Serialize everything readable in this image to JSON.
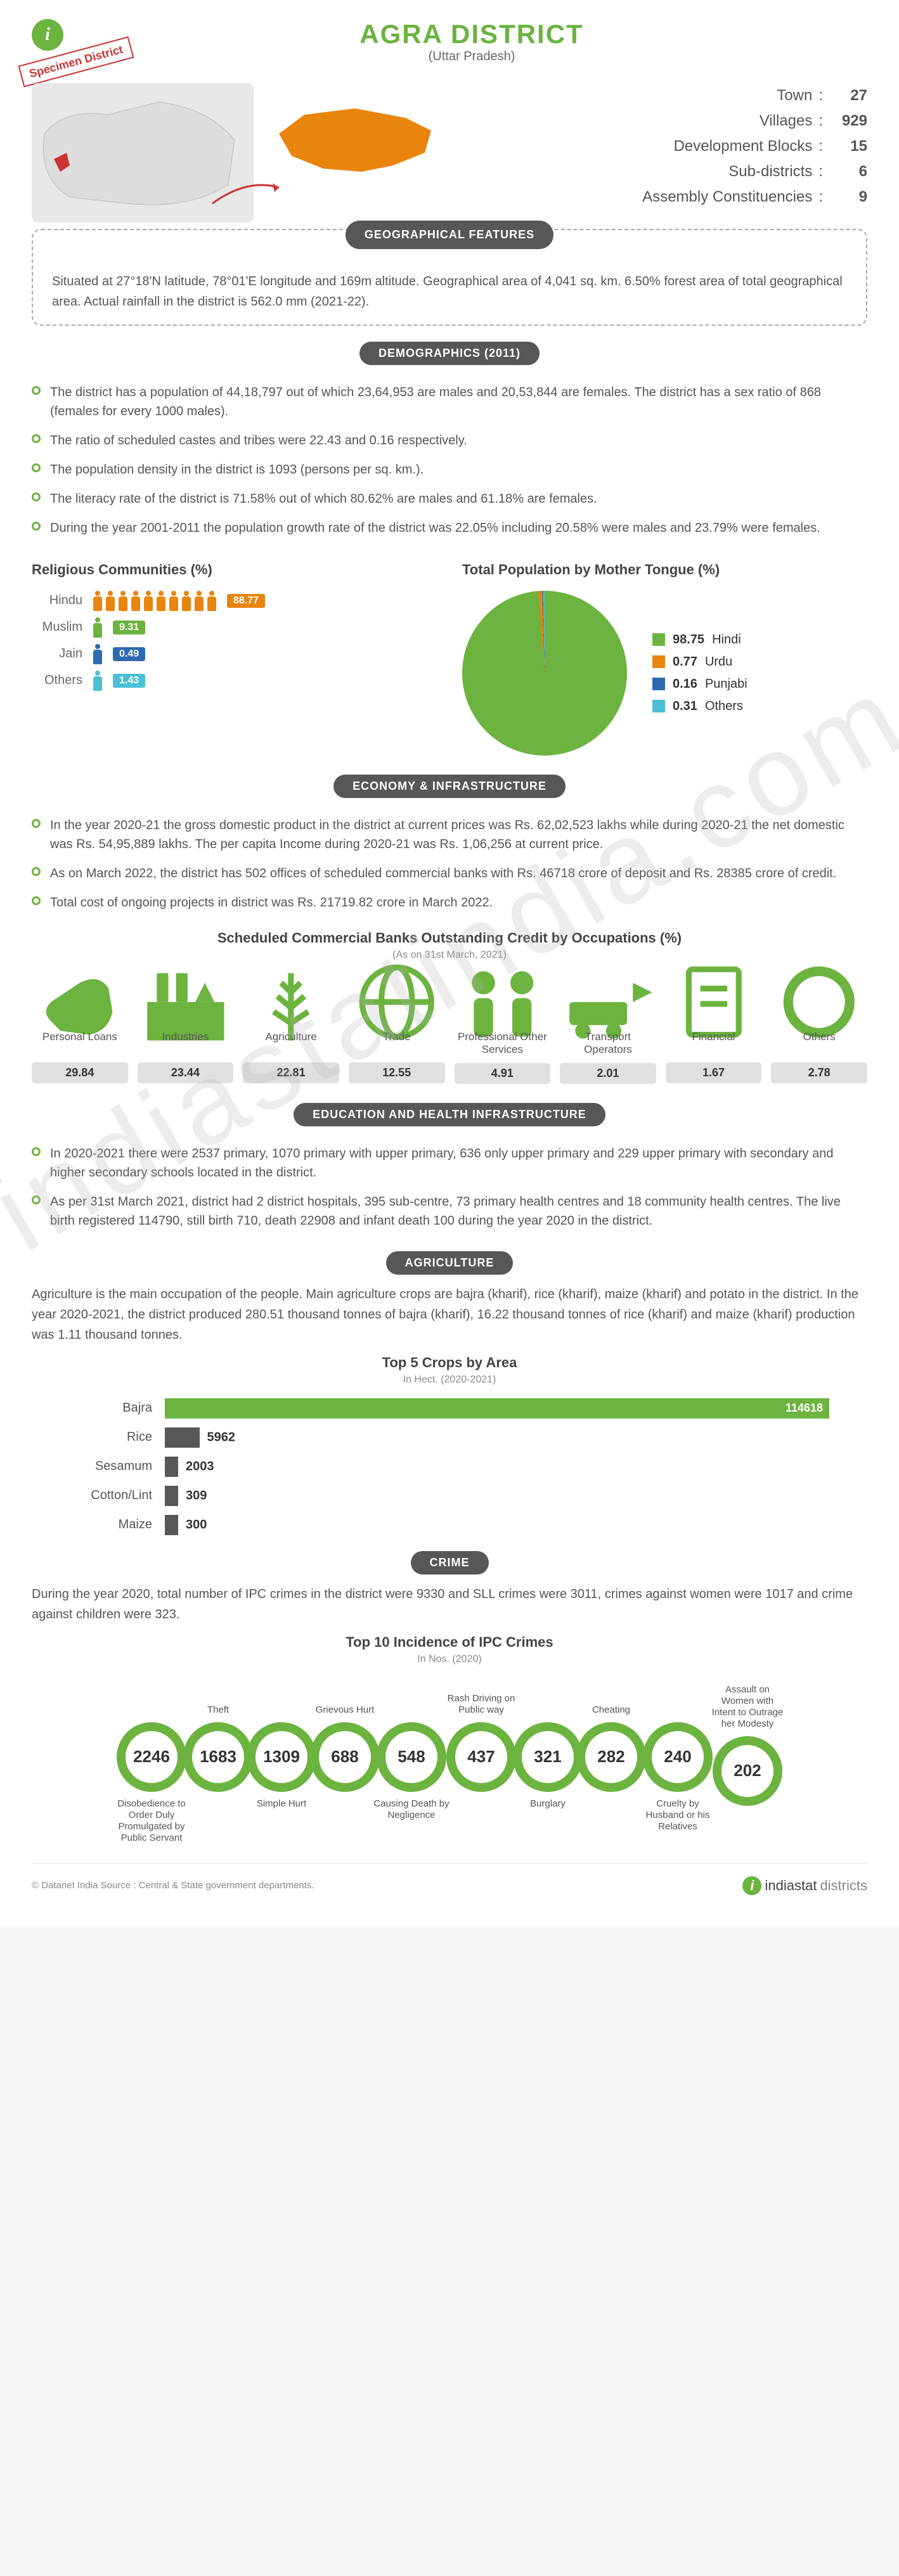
{
  "title": "AGRA DISTRICT",
  "subtitle": "(Uttar Pradesh)",
  "specimen_label": "Specimen District",
  "watermark": "indiastatindia.com",
  "colors": {
    "primary": "#6cb33f",
    "orange": "#e8850f",
    "blue": "#2d6bb0",
    "cyan": "#4bbfd4",
    "dark": "#565759",
    "bar_bg": "#e0e0e0"
  },
  "top_stats": [
    {
      "label": "Town",
      "value": "27"
    },
    {
      "label": "Villages",
      "value": "929"
    },
    {
      "label": "Development Blocks",
      "value": "15"
    },
    {
      "label": "Sub-districts",
      "value": "6"
    },
    {
      "label": "Assembly Constituencies",
      "value": "9"
    }
  ],
  "sections": {
    "geo": {
      "header": "GEOGRAPHICAL FEATURES",
      "text": "Situated at 27°18'N latitude, 78°01'E longitude and 169m altitude. Geographical area of 4,041 sq. km. 6.50% forest area of total geographical area. Actual rainfall in the district is 562.0 mm (2021-22)."
    },
    "demographics": {
      "header": "DEMOGRAPHICS (2011)",
      "bullets": [
        "The district has a population of 44,18,797 out of which 23,64,953 are males and 20,53,844 are females. The district has a sex ratio of 868 (females for every 1000 males).",
        "The ratio of scheduled castes and tribes were 22.43 and 0.16 respectively.",
        "The population density in the district is 1093 (persons per sq. km.).",
        "The literacy rate of the district is 71.58% out of which 80.62% are males and 61.18% are females.",
        "During the year 2001-2011 the population growth rate of the district was 22.05% including 20.58% were males and 23.79% were females."
      ]
    },
    "religion": {
      "title": "Religious Communities (%)",
      "items": [
        {
          "name": "Hindu",
          "pct": "88.77",
          "color": "#e8850f",
          "icons": 10
        },
        {
          "name": "Muslim",
          "pct": "9.31",
          "color": "#6cb33f",
          "icons": 1
        },
        {
          "name": "Jain",
          "pct": "0.49",
          "color": "#2d6bb0",
          "icons": 1
        },
        {
          "name": "Others",
          "pct": "1.43",
          "color": "#4bbfd4",
          "icons": 1
        }
      ]
    },
    "mother_tongue": {
      "title": "Total Population by Mother Tongue (%)",
      "items": [
        {
          "label": "Hindi",
          "value": "98.75",
          "color": "#6cb33f"
        },
        {
          "label": "Urdu",
          "value": "0.77",
          "color": "#e8850f"
        },
        {
          "label": "Punjabi",
          "value": "0.16",
          "color": "#2d6bb0"
        },
        {
          "label": "Others",
          "value": "0.31",
          "color": "#4bbfd4"
        }
      ]
    },
    "economy": {
      "header": "ECONOMY & INFRASTRUCTURE",
      "bullets": [
        "In the year 2020-21 the gross domestic product in the district at current prices was Rs. 62,02,523 lakhs while during 2020-21 the net domestic was Rs. 54,95,889 lakhs. The per capita Income during 2020-21 was Rs. 1,06,256 at current price.",
        "As on March 2022, the district has 502 offices of scheduled commercial banks with Rs. 46718 crore of deposit and Rs. 28385 crore of credit.",
        "Total cost of ongoing projects in district was Rs. 21719.82 crore in March 2022."
      ]
    },
    "credit": {
      "title": "Scheduled Commercial Banks Outstanding Credit by Occupations (%)",
      "subtitle": "(As on 31st March, 2021)",
      "items": [
        {
          "label": "Personal Loans",
          "value": "29.84",
          "icon": "hand"
        },
        {
          "label": "Industries",
          "value": "23.44",
          "icon": "factory"
        },
        {
          "label": "Agriculture",
          "value": "22.81",
          "icon": "wheat"
        },
        {
          "label": "Trade",
          "value": "12.55",
          "icon": "globe"
        },
        {
          "label": "Professional Other Services",
          "value": "4.91",
          "icon": "people"
        },
        {
          "label": "Transport Operators",
          "value": "2.01",
          "icon": "transport"
        },
        {
          "label": "Financial",
          "value": "1.67",
          "icon": "doc"
        },
        {
          "label": "Others",
          "value": "2.78",
          "icon": "circle"
        }
      ]
    },
    "education": {
      "header": "EDUCATION AND HEALTH INFRASTRUCTURE",
      "bullets": [
        "In 2020-2021 there were 2537 primary, 1070 primary with upper primary, 636 only upper primary and 229 upper primary with secondary and higher secondary schools located in the district.",
        "As per 31st March 2021, district had 2 district hospitals, 395 sub-centre, 73 primary health centres and 18 community health centres. The live birth registered 114790, still birth 710, death 22908 and infant death 100 during the year 2020 in the district."
      ]
    },
    "agriculture": {
      "header": "AGRICULTURE",
      "text": "Agriculture is the main occupation of the people. Main agriculture crops are bajra (kharif), rice (kharif), maize (kharif) and potato in the district. In the year 2020-2021, the district produced 280.51 thousand tonnes of bajra (kharif), 16.22 thousand tonnes of rice (kharif) and maize (kharif) production was 1.11 thousand tonnes."
    },
    "crops": {
      "title": "Top 5 Crops by Area",
      "subtitle": "In Hect. (2020-2021)",
      "max": 114618,
      "items": [
        {
          "name": "Bajra",
          "value": 114618,
          "color": "#6cb33f"
        },
        {
          "name": "Rice",
          "value": 5962,
          "color": "#565759"
        },
        {
          "name": "Sesamum",
          "value": 2003,
          "color": "#565759"
        },
        {
          "name": "Cotton/Lint",
          "value": 309,
          "color": "#565759"
        },
        {
          "name": "Maize",
          "value": 300,
          "color": "#565759"
        }
      ]
    },
    "crime": {
      "header": "CRIME",
      "text": "During the year 2020, total number of IPC crimes in the district were 9330 and SLL crimes were 3011, crimes against women were 1017 and crime against children were 323.",
      "title": "Top 10 Incidence of IPC Crimes",
      "subtitle": "In Nos. (2020)",
      "items": [
        {
          "value": "2246",
          "label": "Disobedience to Order Duly Promulgated by Public Servant",
          "pos": "bot"
        },
        {
          "value": "1683",
          "label": "Theft",
          "pos": "top"
        },
        {
          "value": "1309",
          "label": "Simple Hurt",
          "pos": "bot"
        },
        {
          "value": "688",
          "label": "Grievous Hurt",
          "pos": "top"
        },
        {
          "value": "548",
          "label": "Causing Death by Negligence",
          "pos": "bot"
        },
        {
          "value": "437",
          "label": "Rash Driving on Public way",
          "pos": "top"
        },
        {
          "value": "321",
          "label": "Burglary",
          "pos": "bot"
        },
        {
          "value": "282",
          "label": "Cheating",
          "pos": "top"
        },
        {
          "value": "240",
          "label": "Cruelty by Husband or his Relatives",
          "pos": "bot"
        },
        {
          "value": "202",
          "label": "Assault on Women with Intent to Outrage her Modesty",
          "pos": "top"
        }
      ]
    }
  },
  "footer": {
    "copyright": "© Datanet India Source : Central & State government departments.",
    "logo": "indiastatdistricts"
  }
}
